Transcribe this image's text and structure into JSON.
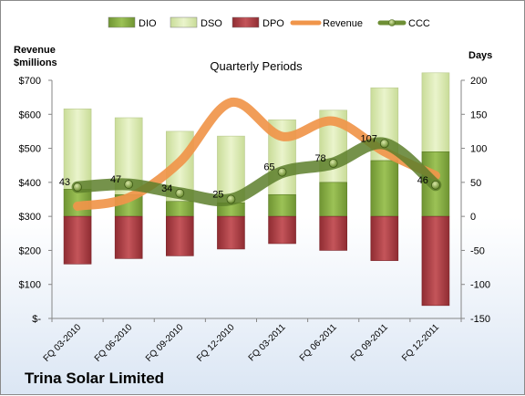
{
  "chart_data": {
    "type": "bar",
    "title": "Quarterly Periods",
    "company": "Trina Solar Limited",
    "left_axis": {
      "label_line1": "Revenue",
      "label_line2": "$millions",
      "ylim": [
        0,
        700
      ],
      "ticks": [
        {
          "value": 0,
          "label": "$-"
        },
        {
          "value": 100,
          "label": "$100"
        },
        {
          "value": 200,
          "label": "$200"
        },
        {
          "value": 300,
          "label": "$300"
        },
        {
          "value": 400,
          "label": "$400"
        },
        {
          "value": 500,
          "label": "$500"
        },
        {
          "value": 600,
          "label": "$600"
        },
        {
          "value": 700,
          "label": "$700"
        }
      ]
    },
    "right_axis": {
      "label": "Days",
      "ylim": [
        -150,
        200
      ],
      "ticks": [
        {
          "value": -150,
          "label": "-150"
        },
        {
          "value": -100,
          "label": "-100"
        },
        {
          "value": -50,
          "label": "-50"
        },
        {
          "value": 0,
          "label": "0"
        },
        {
          "value": 50,
          "label": "50"
        },
        {
          "value": 100,
          "label": "100"
        },
        {
          "value": 150,
          "label": "150"
        },
        {
          "value": 200,
          "label": "200"
        }
      ]
    },
    "categories": [
      "FQ 03-2010",
      "FQ 06-2010",
      "FQ 09-2010",
      "FQ 12-2010",
      "FQ 03-2011",
      "FQ 06-2011",
      "FQ 09-2011",
      "FQ 12-2011"
    ],
    "legend": [
      {
        "name": "DIO",
        "kind": "bar",
        "color": "#8cb249"
      },
      {
        "name": "DSO",
        "kind": "bar",
        "color": "#dcebb4"
      },
      {
        "name": "DPO",
        "kind": "bar",
        "color": "#b5474c"
      },
      {
        "name": "Revenue",
        "kind": "line",
        "color": "#f0954a"
      },
      {
        "name": "CCC",
        "kind": "line-marker",
        "color": "#6e8f35"
      }
    ],
    "series": [
      {
        "name": "DIO",
        "axis": "right",
        "values": [
          40,
          32,
          22,
          20,
          32,
          50,
          82,
          95
        ]
      },
      {
        "name": "DSO",
        "axis": "right",
        "values": [
          118,
          113,
          103,
          98,
          110,
          106,
          107,
          116
        ]
      },
      {
        "name": "DPO",
        "axis": "right",
        "values": [
          -70,
          -62,
          -58,
          -48,
          -40,
          -50,
          -65,
          -131
        ]
      },
      {
        "name": "Revenue",
        "axis": "left",
        "values": [
          330,
          355,
          460,
          635,
          535,
          580,
          490,
          420
        ]
      },
      {
        "name": "CCC",
        "axis": "right",
        "values": [
          43,
          47,
          34,
          25,
          65,
          78,
          107,
          46
        ]
      }
    ],
    "data_labels": [
      "43",
      "47",
      "34",
      "25",
      "65",
      "78",
      "107",
      "46"
    ],
    "grid": false,
    "legend_position": "top"
  }
}
